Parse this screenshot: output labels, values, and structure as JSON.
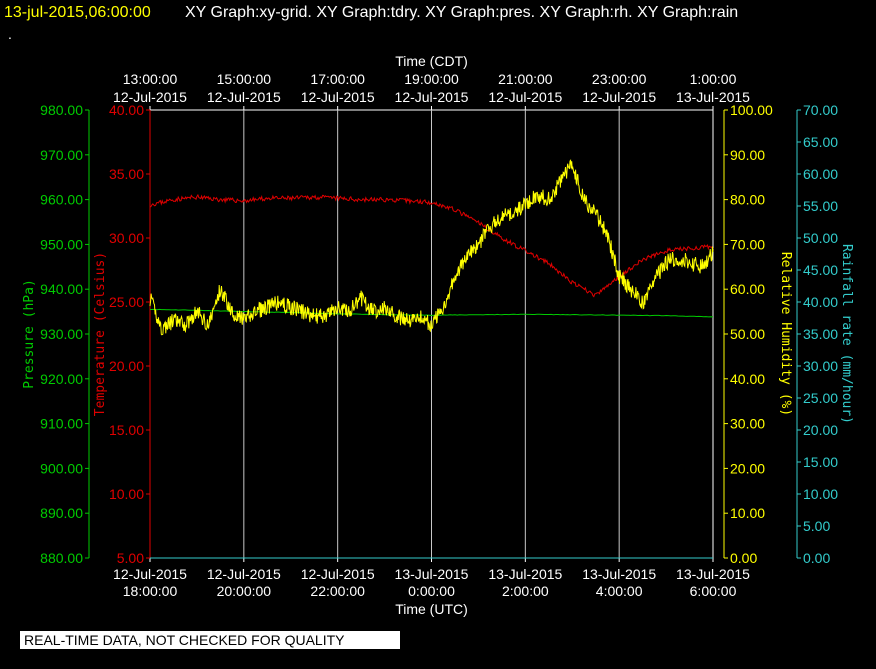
{
  "header": {
    "date": "13-jul-2015,06:00:00",
    "titles": "XY Graph:xy-grid.  XY Graph:tdry.  XY Graph:pres.  XY Graph:rh.  XY Graph:rain",
    "dot": "."
  },
  "disclaimer": "REAL-TIME DATA, NOT CHECKED FOR QUALITY",
  "colors": {
    "pressure": "#00cc00",
    "temperature": "#e00000",
    "humidity": "#ffff00",
    "rain": "#33cccc",
    "axis_text": "#ffffff",
    "grid": "#ffffff"
  },
  "chart_data": {
    "type": "line",
    "x_top": {
      "title": "Time (CDT)",
      "ticks": [
        {
          "time": "13:00:00",
          "date": "12-Jul-2015"
        },
        {
          "time": "15:00:00",
          "date": "12-Jul-2015"
        },
        {
          "time": "17:00:00",
          "date": "12-Jul-2015"
        },
        {
          "time": "19:00:00",
          "date": "12-Jul-2015"
        },
        {
          "time": "21:00:00",
          "date": "12-Jul-2015"
        },
        {
          "time": "23:00:00",
          "date": "12-Jul-2015"
        },
        {
          "time": "1:00:00",
          "date": "13-Jul-2015"
        }
      ]
    },
    "x_bottom": {
      "title": "Time (UTC)",
      "range": [
        "2015-07-12 18:00",
        "2015-07-13 06:00"
      ],
      "ticks": [
        {
          "date": "12-Jul-2015",
          "time": "18:00:00"
        },
        {
          "date": "12-Jul-2015",
          "time": "20:00:00"
        },
        {
          "date": "12-Jul-2015",
          "time": "22:00:00"
        },
        {
          "date": "13-Jul-2015",
          "time": "0:00:00"
        },
        {
          "date": "13-Jul-2015",
          "time": "2:00:00"
        },
        {
          "date": "13-Jul-2015",
          "time": "4:00:00"
        },
        {
          "date": "13-Jul-2015",
          "time": "6:00:00"
        }
      ]
    },
    "axes": {
      "pressure": {
        "label": "Pressure (hPa)",
        "range": [
          880,
          980
        ],
        "ticks": [
          "880.00",
          "890.00",
          "900.00",
          "910.00",
          "920.00",
          "930.00",
          "940.00",
          "950.00",
          "960.00",
          "970.00",
          "980.00"
        ]
      },
      "temperature": {
        "label": "Temperature (Celsius)",
        "range": [
          5,
          40
        ],
        "ticks": [
          "5.00",
          "10.00",
          "15.00",
          "20.00",
          "25.00",
          "30.00",
          "35.00",
          "40.00"
        ]
      },
      "humidity": {
        "label": "Relative Humidity (%)",
        "range": [
          0,
          100
        ],
        "ticks": [
          "0.00",
          "10.00",
          "20.00",
          "30.00",
          "40.00",
          "50.00",
          "60.00",
          "70.00",
          "80.00",
          "90.00",
          "100.00"
        ]
      },
      "rain": {
        "label": "Rainfall rate (mm/hour)",
        "range": [
          0,
          70
        ],
        "ticks": [
          "0.00",
          "5.00",
          "10.00",
          "15.00",
          "20.00",
          "25.00",
          "30.00",
          "35.00",
          "40.00",
          "45.00",
          "50.00",
          "55.00",
          "60.00",
          "65.00",
          "70.00"
        ]
      }
    },
    "grid": true,
    "series": {
      "temperature": {
        "x_hours": [
          0,
          0.5,
          1,
          1.5,
          2,
          2.5,
          3,
          3.5,
          4,
          4.5,
          5,
          5.5,
          6,
          6.5,
          7,
          7.5,
          8,
          8.5,
          9,
          9.5,
          10,
          10.5,
          11,
          11.5,
          12
        ],
        "values": [
          32.6,
          33.0,
          33.2,
          33.0,
          32.9,
          33.1,
          33.1,
          33.2,
          33.1,
          33.0,
          33.0,
          32.9,
          32.8,
          32.2,
          31.2,
          30.0,
          29.0,
          28.0,
          26.5,
          25.5,
          27.0,
          28.3,
          29.0,
          29.2,
          29.3
        ]
      },
      "pressure": {
        "x_hours": [
          0,
          1,
          2,
          3,
          4,
          5,
          6,
          7,
          8,
          9,
          10,
          11,
          12
        ],
        "values": [
          935.5,
          935.3,
          935.0,
          934.8,
          934.5,
          934.3,
          934.2,
          934.3,
          934.4,
          934.3,
          934.2,
          934.1,
          933.8
        ]
      },
      "humidity": {
        "x_hours": [
          0,
          0.25,
          0.5,
          0.75,
          1,
          1.25,
          1.5,
          1.75,
          2,
          2.25,
          2.5,
          2.75,
          3,
          3.25,
          3.5,
          3.75,
          4,
          4.25,
          4.5,
          4.75,
          5,
          5.25,
          5.5,
          5.75,
          6,
          6.25,
          6.5,
          6.75,
          7,
          7.25,
          7.5,
          7.75,
          8,
          8.25,
          8.5,
          8.75,
          9,
          9.25,
          9.5,
          9.75,
          10,
          10.25,
          10.5,
          10.75,
          11,
          11.25,
          11.5,
          11.75,
          12
        ],
        "values": [
          58,
          51,
          53,
          52,
          55,
          52,
          60,
          55,
          53,
          55,
          56,
          57,
          56,
          55,
          54,
          54,
          56,
          55,
          58,
          55,
          56,
          54,
          53,
          54,
          52,
          56,
          63,
          67,
          70,
          74,
          76,
          77,
          79,
          81,
          80,
          84,
          88,
          80,
          77,
          72,
          63,
          60,
          57,
          62,
          66,
          67,
          66,
          65,
          68
        ]
      },
      "rain": {
        "x_hours": [
          0,
          12
        ],
        "values": [
          0,
          0
        ]
      }
    }
  }
}
